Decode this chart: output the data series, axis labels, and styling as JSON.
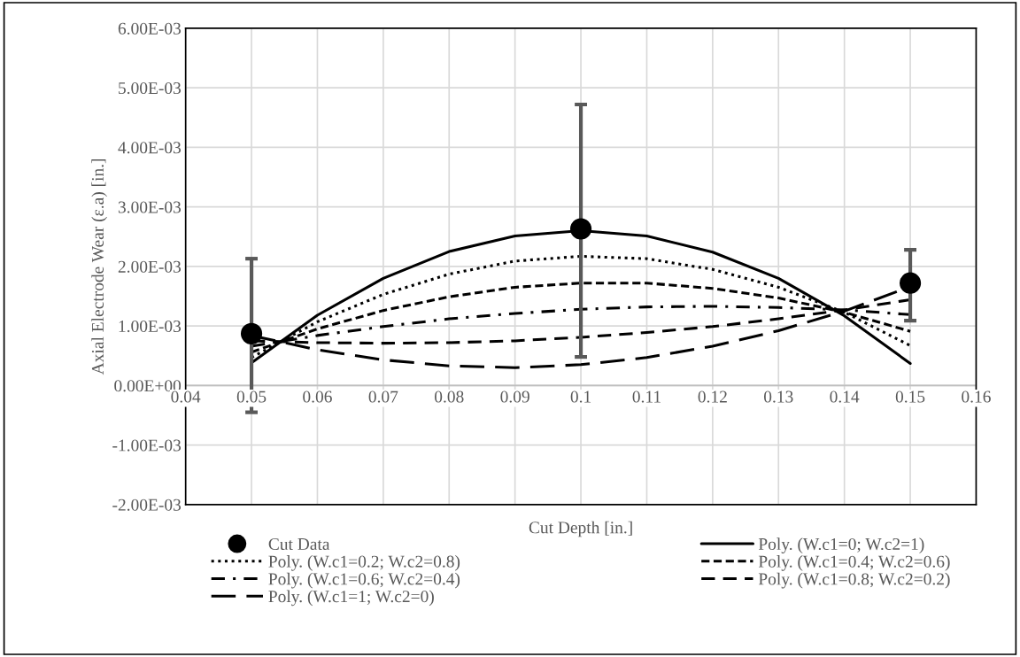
{
  "chart_data": {
    "type": "line",
    "xlabel": "Cut Depth [in.]",
    "ylabel": "Axial Electrode Wear (ε.a) [in.]",
    "x": [
      0.05,
      0.06,
      0.07,
      0.08,
      0.09,
      0.1,
      0.11,
      0.12,
      0.13,
      0.14,
      0.15
    ],
    "xlim": [
      0.04,
      0.16
    ],
    "xticks": [
      0.04,
      0.05,
      0.06,
      0.07,
      0.08,
      0.09,
      0.1,
      0.11,
      0.12,
      0.13,
      0.14,
      0.15,
      0.16
    ],
    "ylim": [
      -0.002,
      0.006
    ],
    "yticks": [
      {
        "value": -0.002,
        "label": "-2.00E-03"
      },
      {
        "value": -0.001,
        "label": "-1.00E-03"
      },
      {
        "value": 0,
        "label": "0.00E+00"
      },
      {
        "value": 0.001,
        "label": "1.00E-03"
      },
      {
        "value": 0.002,
        "label": "2.00E-03"
      },
      {
        "value": 0.003,
        "label": "3.00E-03"
      },
      {
        "value": 0.004,
        "label": "4.00E-03"
      },
      {
        "value": 0.005,
        "label": "5.00E-03"
      },
      {
        "value": 0.006,
        "label": "6.00E-03"
      }
    ],
    "grid": true,
    "legend": "bottom",
    "series": [
      {
        "name": "Cut Data",
        "type": "scatter",
        "marker": "circle",
        "color": "#000000",
        "x": [
          0.05,
          0.1,
          0.15
        ],
        "values": [
          0.00087,
          0.00263,
          0.00172
        ],
        "errors": [
          [
            -0.00045,
            0.00213
          ],
          [
            0.00048,
            0.00472
          ],
          [
            0.00109,
            0.00228
          ]
        ]
      },
      {
        "name": "Poly. (W.c1=0; W.c2=1)",
        "line_style": "solid",
        "color": "#000000",
        "values": [
          0.00038,
          0.00118,
          0.0018,
          0.00225,
          0.00251,
          0.0026,
          0.00251,
          0.00224,
          0.0018,
          0.00117,
          0.00037
        ]
      },
      {
        "name": "Poly. (W.c1=0.2; W.c2=0.8)",
        "line_style": "dotted",
        "color": "#000000",
        "values": [
          0.00047,
          0.00107,
          0.00153,
          0.00187,
          0.00209,
          0.00217,
          0.00213,
          0.00195,
          0.00165,
          0.00123,
          0.00067
        ]
      },
      {
        "name": "Poly. (W.c1=0.4; W.c2=0.6)",
        "line_style": "shortdash",
        "color": "#000000",
        "values": [
          0.00056,
          0.00095,
          0.00126,
          0.00149,
          0.00165,
          0.00172,
          0.00172,
          0.00163,
          0.00147,
          0.00123,
          0.00091
        ]
      },
      {
        "name": "Poly. (W.c1=0.6; W.c2=0.4)",
        "line_style": "dashdot",
        "color": "#000000",
        "values": [
          0.00066,
          0.00084,
          0.00099,
          0.00112,
          0.00121,
          0.00128,
          0.00132,
          0.00133,
          0.00131,
          0.00127,
          0.00119
        ]
      },
      {
        "name": "Poly. (W.c1=0.8; W.c2=0.2)",
        "line_style": "dashed",
        "color": "#000000",
        "values": [
          0.00075,
          0.00072,
          0.00071,
          0.00072,
          0.00075,
          0.00081,
          0.00089,
          0.00099,
          0.00112,
          0.00127,
          0.00144
        ]
      },
      {
        "name": "Poly. (W.c1=1; W.c2=0)",
        "line_style": "longdash",
        "color": "#000000",
        "values": [
          0.00084,
          0.0006,
          0.00043,
          0.00033,
          0.0003,
          0.00035,
          0.00047,
          0.00066,
          0.00092,
          0.00125,
          0.00166
        ]
      }
    ]
  }
}
